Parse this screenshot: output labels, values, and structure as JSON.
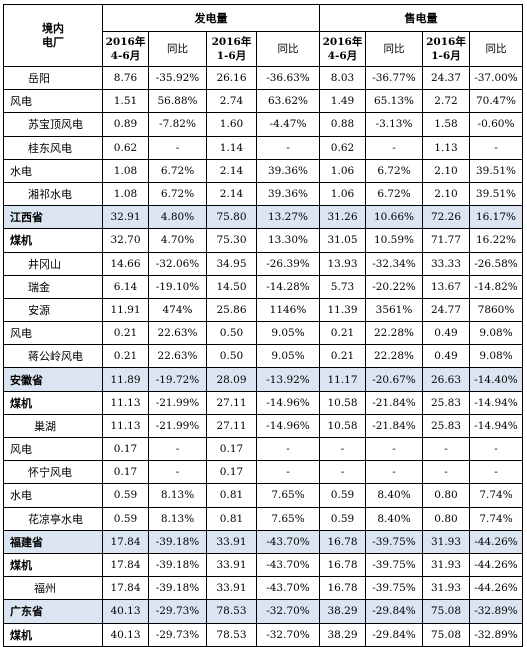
{
  "header": {
    "corner": "境内\n电厂",
    "gen_group": "发电量",
    "sales_group": "售电量",
    "col_q2": "2016年\n4-6月",
    "col_h1": "2016年\n1-6月",
    "col_yoy": "同比"
  },
  "rows": [
    {
      "name": "岳阳",
      "kind": "plant",
      "vals": [
        "8.76",
        "-35.92%",
        "26.16",
        "-36.63%",
        "8.03",
        "-36.77%",
        "24.37",
        "-37.00%"
      ]
    },
    {
      "name": "风电",
      "kind": "cat",
      "vals": [
        "1.51",
        "56.88%",
        "2.74",
        "63.62%",
        "1.49",
        "65.13%",
        "2.72",
        "70.47%"
      ]
    },
    {
      "name": "苏宝顶风电",
      "kind": "plant",
      "vals": [
        "0.89",
        "-7.82%",
        "1.60",
        "-4.47%",
        "0.88",
        "-3.13%",
        "1.58",
        "-0.60%"
      ]
    },
    {
      "name": "桂东风电",
      "kind": "plant",
      "vals": [
        "0.62",
        "-",
        "1.14",
        "-",
        "0.62",
        "-",
        "1.13",
        "-"
      ]
    },
    {
      "name": "水电",
      "kind": "cat",
      "vals": [
        "1.08",
        "6.72%",
        "2.14",
        "39.36%",
        "1.06",
        "6.72%",
        "2.10",
        "39.51%"
      ]
    },
    {
      "name": "湘祁水电",
      "kind": "plant",
      "vals": [
        "1.08",
        "6.72%",
        "2.14",
        "39.36%",
        "1.06",
        "6.72%",
        "2.10",
        "39.51%"
      ]
    },
    {
      "name": "江西省",
      "kind": "province",
      "vals": [
        "32.91",
        "4.80%",
        "75.80",
        "13.27%",
        "31.26",
        "10.66%",
        "72.26",
        "16.17%"
      ]
    },
    {
      "name": "煤机",
      "kind": "catb",
      "vals": [
        "32.70",
        "4.70%",
        "75.30",
        "13.30%",
        "31.05",
        "10.59%",
        "71.77",
        "16.22%"
      ]
    },
    {
      "name": "井冈山",
      "kind": "plant",
      "vals": [
        "14.66",
        "-32.06%",
        "34.95",
        "-26.39%",
        "13.93",
        "-32.34%",
        "33.33",
        "-26.58%"
      ]
    },
    {
      "name": "瑞金",
      "kind": "plant",
      "vals": [
        "6.14",
        "-19.10%",
        "14.50",
        "-14.28%",
        "5.73",
        "-20.22%",
        "13.67",
        "-14.82%"
      ]
    },
    {
      "name": "安源",
      "kind": "plant",
      "vals": [
        "11.91",
        "474%",
        "25.86",
        "1146%",
        "11.39",
        "3561%",
        "24.77",
        "7860%"
      ]
    },
    {
      "name": "风电",
      "kind": "cat",
      "vals": [
        "0.21",
        "22.63%",
        "0.50",
        "9.05%",
        "0.21",
        "22.28%",
        "0.49",
        "9.08%"
      ]
    },
    {
      "name": "蒋公岭风电",
      "kind": "plant",
      "vals": [
        "0.21",
        "22.63%",
        "0.50",
        "9.05%",
        "0.21",
        "22.28%",
        "0.49",
        "9.08%"
      ]
    },
    {
      "name": "安徽省",
      "kind": "province",
      "vals": [
        "11.89",
        "-19.72%",
        "28.09",
        "-13.92%",
        "11.17",
        "-20.67%",
        "26.63",
        "-14.40%"
      ]
    },
    {
      "name": "煤机",
      "kind": "catb",
      "vals": [
        "11.13",
        "-21.99%",
        "27.11",
        "-14.96%",
        "10.58",
        "-21.84%",
        "25.83",
        "-14.94%"
      ]
    },
    {
      "name": "巢湖",
      "kind": "plant2",
      "vals": [
        "11.13",
        "-21.99%",
        "27.11",
        "-14.96%",
        "10.58",
        "-21.84%",
        "25.83",
        "-14.94%"
      ]
    },
    {
      "name": "风电",
      "kind": "cat",
      "vals": [
        "0.17",
        "-",
        "0.17",
        "-",
        "-",
        "-",
        "-",
        "-"
      ]
    },
    {
      "name": "怀宁风电",
      "kind": "plant",
      "vals": [
        "0.17",
        "-",
        "0.17",
        "-",
        "-",
        "-",
        "-",
        "-"
      ]
    },
    {
      "name": "水电",
      "kind": "cat",
      "vals": [
        "0.59",
        "8.13%",
        "0.81",
        "7.65%",
        "0.59",
        "8.40%",
        "0.80",
        "7.74%"
      ]
    },
    {
      "name": "花凉亭水电",
      "kind": "plant",
      "vals": [
        "0.59",
        "8.13%",
        "0.81",
        "7.65%",
        "0.59",
        "8.40%",
        "0.80",
        "7.74%"
      ]
    },
    {
      "name": "福建省",
      "kind": "province",
      "vals": [
        "17.84",
        "-39.18%",
        "33.91",
        "-43.70%",
        "16.78",
        "-39.75%",
        "31.93",
        "-44.26%"
      ]
    },
    {
      "name": "煤机",
      "kind": "catb",
      "vals": [
        "17.84",
        "-39.18%",
        "33.91",
        "-43.70%",
        "16.78",
        "-39.75%",
        "31.93",
        "-44.26%"
      ]
    },
    {
      "name": "福州",
      "kind": "plant2",
      "vals": [
        "17.84",
        "-39.18%",
        "33.91",
        "-43.70%",
        "16.78",
        "-39.75%",
        "31.93",
        "-44.26%"
      ]
    },
    {
      "name": "广东省",
      "kind": "province",
      "vals": [
        "40.13",
        "-29.73%",
        "78.53",
        "-32.70%",
        "38.29",
        "-29.84%",
        "75.08",
        "-32.89%"
      ]
    },
    {
      "name": "煤机",
      "kind": "catb",
      "vals": [
        "40.13",
        "-29.73%",
        "78.53",
        "-32.70%",
        "38.29",
        "-29.84%",
        "75.08",
        "-32.89%"
      ]
    }
  ]
}
